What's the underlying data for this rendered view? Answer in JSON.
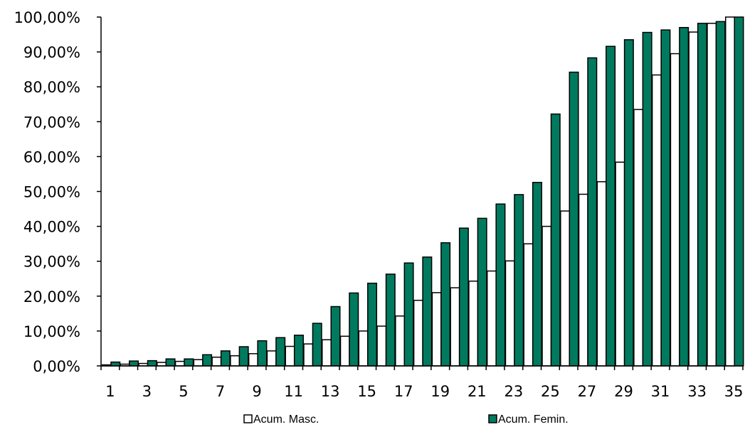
{
  "chart_data": {
    "type": "bar",
    "title": "",
    "xlabel": "",
    "ylabel": "",
    "ylim": [
      0,
      100
    ],
    "y_ticks": [
      "0,00%",
      "10,00%",
      "20,00%",
      "30,00%",
      "40,00%",
      "50,00%",
      "60,00%",
      "70,00%",
      "80,00%",
      "90,00%",
      "100,00%"
    ],
    "categories": [
      1,
      2,
      3,
      4,
      5,
      6,
      7,
      8,
      9,
      10,
      11,
      12,
      13,
      14,
      15,
      16,
      17,
      18,
      19,
      20,
      21,
      22,
      23,
      24,
      25,
      26,
      27,
      28,
      29,
      30,
      31,
      32,
      33,
      34,
      35
    ],
    "x_tick_labels": [
      "1",
      "3",
      "5",
      "7",
      "9",
      "11",
      "13",
      "15",
      "17",
      "19",
      "21",
      "23",
      "25",
      "27",
      "29",
      "31",
      "33",
      "35"
    ],
    "grid": false,
    "legend_position": "bottom",
    "series": [
      {
        "name": "Acum. Masc.",
        "color": "#ffffff",
        "values": [
          0.3,
          0.5,
          0.7,
          1.0,
          1.3,
          1.8,
          2.5,
          2.9,
          3.5,
          4.3,
          5.6,
          6.3,
          7.5,
          8.5,
          10.0,
          11.4,
          14.3,
          18.8,
          21.0,
          22.4,
          24.3,
          27.2,
          30.1,
          35.0,
          40.0,
          44.4,
          49.2,
          52.8,
          58.4,
          73.5,
          83.4,
          89.5,
          95.7,
          98.2,
          100.0
        ]
      },
      {
        "name": "Acum. Femin.",
        "color": "#007a5e",
        "values": [
          1.1,
          1.4,
          1.5,
          2.0,
          2.0,
          3.2,
          4.3,
          5.5,
          7.2,
          8.1,
          8.8,
          12.2,
          17.0,
          20.9,
          23.7,
          26.3,
          29.5,
          31.2,
          35.3,
          39.5,
          42.3,
          46.4,
          49.1,
          52.6,
          72.2,
          84.2,
          88.3,
          91.6,
          93.5,
          95.6,
          96.3,
          97.0,
          98.2,
          98.7,
          100.0
        ]
      }
    ]
  }
}
